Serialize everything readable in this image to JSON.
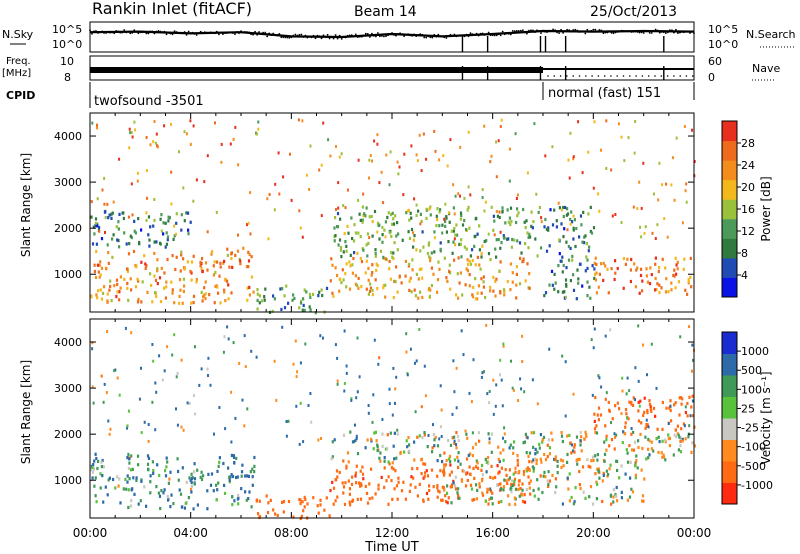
{
  "header": {
    "title": "Rankin Inlet (fitACF)",
    "beam": "Beam 14",
    "date": "25/Oct/2013"
  },
  "panels": {
    "nsky_label": "N.Sky",
    "nsky_ticks": [
      "10^5",
      "10^0"
    ],
    "nsearch_label": "N.Search",
    "nsearch_ticks": [
      "10^5",
      "10^0"
    ],
    "freq_label": "Freq.",
    "freq_unit": "[MHz]",
    "freq_ticks": [
      "10",
      "8"
    ],
    "nave_label": "Nave",
    "nave_ticks": [
      "60",
      "0"
    ],
    "cpid_label": "CPID",
    "cpid_segments": [
      {
        "name": "twofsound -3501",
        "start": "00:00",
        "end": "18:00"
      },
      {
        "name": "normal (fast) 151",
        "start": "18:00",
        "end": "24:00"
      }
    ]
  },
  "axes": {
    "xlabel": "Time UT",
    "xticks": [
      "00:00",
      "04:00",
      "08:00",
      "12:00",
      "16:00",
      "20:00",
      "00:00"
    ],
    "ylabel": "Slant Range [km]",
    "yticks": [
      "1000",
      "2000",
      "3000",
      "4000"
    ]
  },
  "colorbars": {
    "power": {
      "label": "Power [dB]",
      "ticks": [
        "4",
        "8",
        "12",
        "16",
        "20",
        "24",
        "28"
      ],
      "colors": [
        "#0a12e6",
        "#1e4bb4",
        "#2f7a3c",
        "#4c9a5a",
        "#9bc13a",
        "#f3b91c",
        "#f58c1e",
        "#ee6a1c",
        "#e82e1c"
      ]
    },
    "velocity": {
      "label": "Velocity [m s⁻¹]",
      "ticks": [
        "1000",
        "500",
        "100",
        "25",
        "-25",
        "-100",
        "-500",
        "-1000"
      ],
      "colors": [
        "#1a2ccf",
        "#2c6aa8",
        "#3f9a58",
        "#58c23a",
        "#c8c8c0",
        "#ff8a1e",
        "#ff6a12",
        "#ff2a10"
      ]
    }
  },
  "chart_data": [
    {
      "type": "line",
      "title": "N.Sky / N.Search",
      "x": [
        0,
        2,
        4,
        6,
        8,
        10,
        12,
        14,
        16,
        18,
        20,
        22,
        24
      ],
      "series": [
        {
          "name": "N.Sky",
          "values": [
            3.3,
            3.4,
            3.1,
            3.3,
            2.6,
            2.5,
            3.0,
            2.6,
            3.0,
            3.5,
            3.4,
            3.5,
            3.4
          ]
        }
      ],
      "xlim": [
        0,
        24
      ],
      "ylim": [
        0,
        5
      ]
    },
    {
      "type": "line",
      "title": "Freq. / Nave",
      "x": [
        0,
        24
      ],
      "series": [
        {
          "name": "Freq.",
          "values": [
            10,
            10
          ]
        }
      ],
      "xlim": [
        0,
        24
      ],
      "ylim": [
        8,
        10
      ]
    },
    {
      "type": "heatmap",
      "title": "Power [dB]",
      "xlabel": "Time UT",
      "ylabel": "Slant Range [km]",
      "xlim": [
        0,
        24
      ],
      "ylim": [
        180,
        4500
      ],
      "bands": [
        {
          "x0": 0,
          "x1": 6.5,
          "y0": 400,
          "y1": 1600,
          "value": 24
        },
        {
          "x0": 6.5,
          "x1": 9.5,
          "y0": 200,
          "y1": 800,
          "value": 10
        },
        {
          "x0": 9.5,
          "x1": 17.5,
          "y0": 500,
          "y1": 1400,
          "value": 22
        },
        {
          "x0": 9.5,
          "x1": 18,
          "y0": 1400,
          "y1": 2500,
          "value": 12
        },
        {
          "x0": 18,
          "x1": 20,
          "y0": 500,
          "y1": 2500,
          "value": 8
        },
        {
          "x0": 20,
          "x1": 24,
          "y0": 600,
          "y1": 1400,
          "value": 26
        },
        {
          "x0": 0,
          "x1": 4,
          "y0": 1600,
          "y1": 2400,
          "value": 8
        }
      ]
    },
    {
      "type": "heatmap",
      "title": "Velocity [m s⁻¹]",
      "xlabel": "Time UT",
      "ylabel": "Slant Range [km]",
      "xlim": [
        0,
        24
      ],
      "ylim": [
        180,
        4500
      ],
      "bands": [
        {
          "x0": 0,
          "x1": 6.5,
          "y0": 400,
          "y1": 1600,
          "value": 100
        },
        {
          "x0": 6.5,
          "x1": 9.5,
          "y0": 200,
          "y1": 700,
          "value": -300
        },
        {
          "x0": 9.5,
          "x1": 17.5,
          "y0": 500,
          "y1": 1400,
          "value": -400
        },
        {
          "x0": 9.5,
          "x1": 24,
          "y0": 1400,
          "y1": 2100,
          "value": 0
        },
        {
          "x0": 14,
          "x1": 22,
          "y0": 500,
          "y1": 1500,
          "value": 0
        },
        {
          "x0": 20,
          "x1": 24,
          "y0": 2100,
          "y1": 2900,
          "value": -400
        }
      ]
    }
  ]
}
